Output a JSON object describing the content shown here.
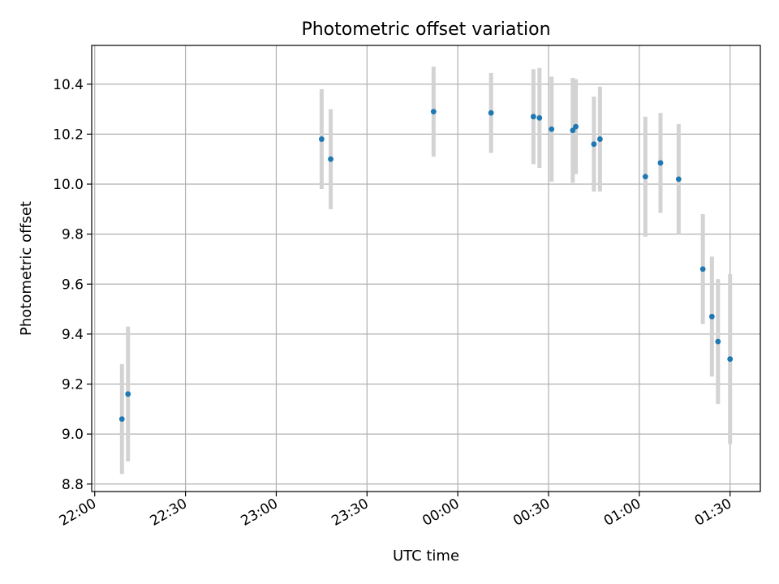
{
  "chart_data": {
    "type": "scatter",
    "title": "Photometric offset variation",
    "xlabel": "UTC time",
    "ylabel": "Photometric offset",
    "x_axis": "time",
    "x_ticks": [
      "22:00",
      "22:30",
      "23:00",
      "23:30",
      "00:00",
      "00:30",
      "01:00",
      "01:30"
    ],
    "y_ticks": [
      "8.8",
      "9.0",
      "9.2",
      "9.4",
      "9.6",
      "9.8",
      "10.0",
      "10.2",
      "10.4"
    ],
    "xlim": [
      "21:59",
      "01:40"
    ],
    "ylim": [
      8.77,
      10.555
    ],
    "grid": true,
    "colors": {
      "marker": "#1f77b4",
      "errorbar": "#d3d3d3",
      "grid": "#b0b0b0"
    },
    "series": [
      {
        "points": [
          {
            "x": "22:09",
            "y": 9.06,
            "err": 0.22
          },
          {
            "x": "22:11",
            "y": 9.16,
            "err": 0.27
          },
          {
            "x": "23:15",
            "y": 10.18,
            "err": 0.2
          },
          {
            "x": "23:18",
            "y": 10.1,
            "err": 0.2
          },
          {
            "x": "23:52",
            "y": 10.29,
            "err": 0.18
          },
          {
            "x": "00:11",
            "y": 10.285,
            "err": 0.16
          },
          {
            "x": "00:25",
            "y": 10.27,
            "err": 0.19
          },
          {
            "x": "00:27",
            "y": 10.265,
            "err": 0.2
          },
          {
            "x": "00:31",
            "y": 10.22,
            "err": 0.21
          },
          {
            "x": "00:38",
            "y": 10.215,
            "err": 0.21
          },
          {
            "x": "00:39",
            "y": 10.23,
            "err": 0.19
          },
          {
            "x": "00:45",
            "y": 10.16,
            "err": 0.19
          },
          {
            "x": "00:47",
            "y": 10.18,
            "err": 0.21
          },
          {
            "x": "01:02",
            "y": 10.03,
            "err": 0.24
          },
          {
            "x": "01:07",
            "y": 10.085,
            "err": 0.2
          },
          {
            "x": "01:13",
            "y": 10.02,
            "err": 0.22
          },
          {
            "x": "01:21",
            "y": 9.66,
            "err": 0.22
          },
          {
            "x": "01:24",
            "y": 9.47,
            "err": 0.24
          },
          {
            "x": "01:26",
            "y": 9.37,
            "err": 0.25
          },
          {
            "x": "01:30",
            "y": 9.3,
            "err": 0.34
          }
        ]
      }
    ]
  }
}
